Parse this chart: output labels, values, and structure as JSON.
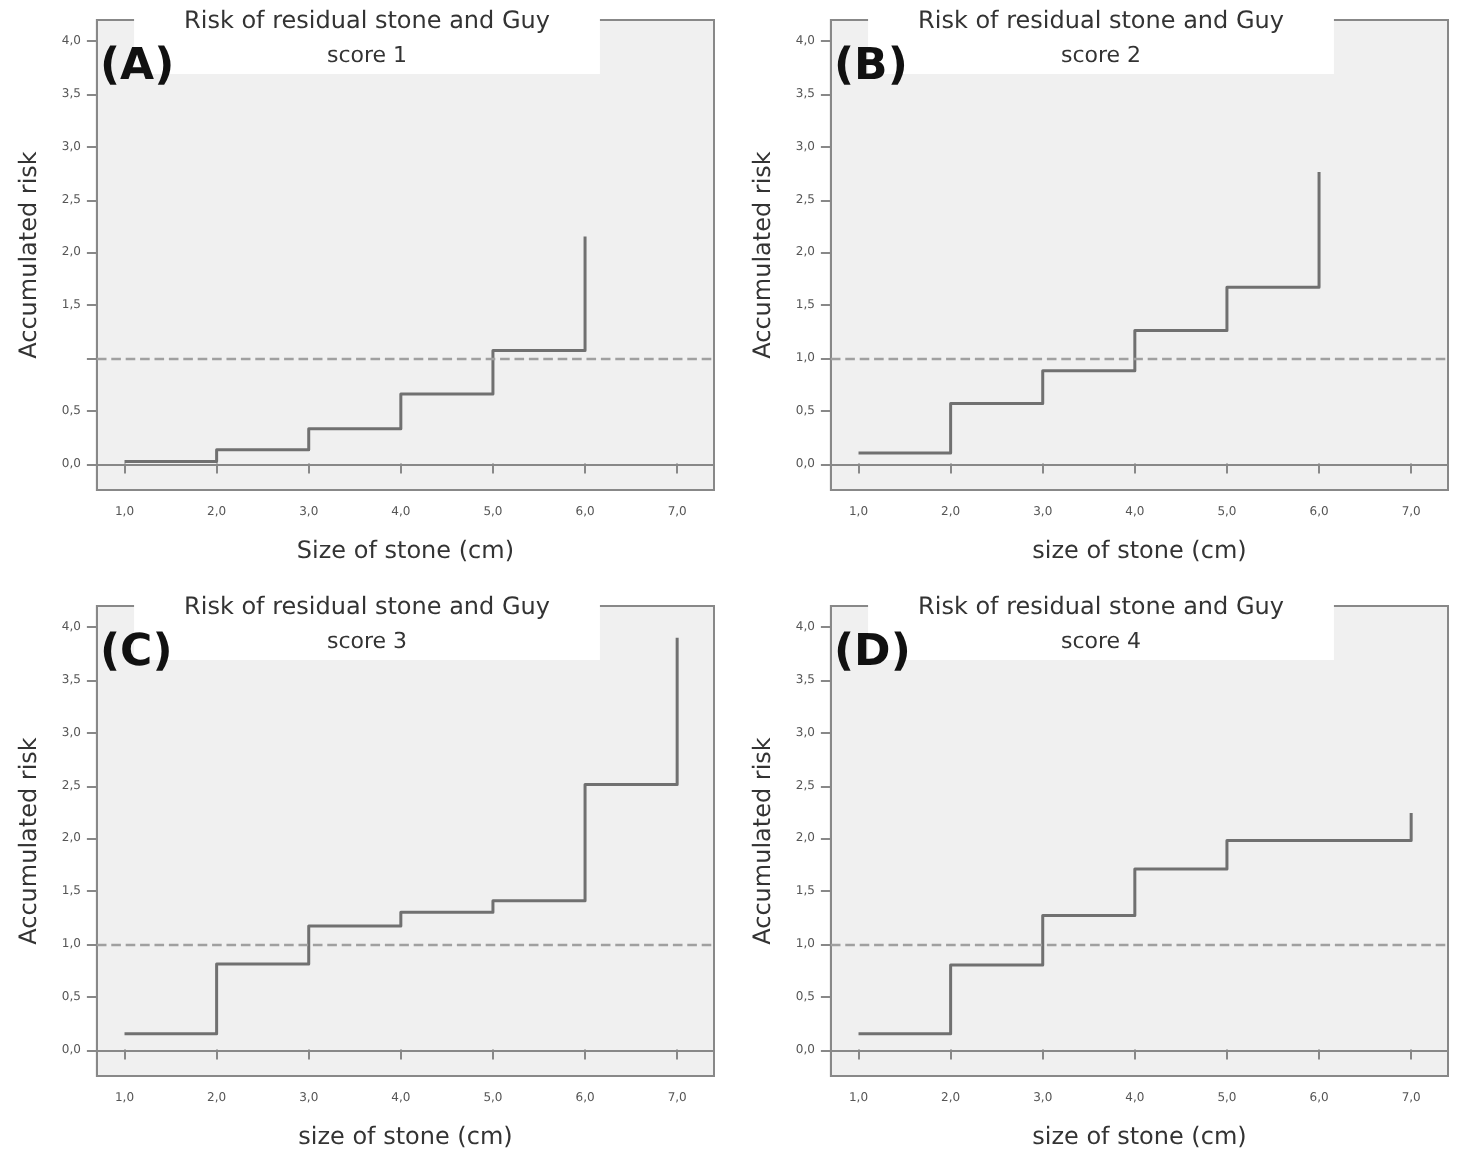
{
  "chart_data": [
    {
      "type": "step",
      "title": "Risk of residual stone and Guy",
      "subtitle": "score 1",
      "xlabel": "Size of stone (cm)",
      "ylabel": "Accumulated risk",
      "annotations": [
        "(A)"
      ],
      "marker": "none",
      "grid": false,
      "series": [
        {
          "color": "#707070",
          "x": [
            1,
            2,
            3,
            4,
            5,
            6
          ],
          "values": [
            0.02,
            0.13,
            0.33,
            0.66,
            1.07,
            2.15
          ]
        }
      ],
      "ref_lines": [
        {
          "axis": "y",
          "value": 1,
          "color": "#a0a0a0",
          "line_style": "dashed"
        }
      ],
      "xlim": [
        0.7,
        7.4
      ],
      "xticks": [
        {
          "value": 1,
          "label": "1,0"
        },
        {
          "value": 2,
          "label": "2,0"
        },
        {
          "value": 3,
          "label": "3,0"
        },
        {
          "value": 4,
          "label": "4,0"
        },
        {
          "value": 5,
          "label": "5,0"
        },
        {
          "value": 6,
          "label": "6,0"
        },
        {
          "value": 7,
          "label": "7,0"
        }
      ],
      "ylim": [
        -0.25,
        4.2
      ],
      "yticks": [
        {
          "value": 0,
          "label": "0,0"
        },
        {
          "value": 0.5,
          "label": "0,5"
        },
        {
          "value": 1,
          "label": null
        },
        {
          "value": 1.5,
          "label": "1,5"
        },
        {
          "value": 2,
          "label": "2,0"
        },
        {
          "value": 2.5,
          "label": "2,5"
        },
        {
          "value": 3,
          "label": "3,0"
        },
        {
          "value": 3.5,
          "label": "3,5"
        },
        {
          "value": 4,
          "label": "4,0"
        }
      ]
    },
    {
      "type": "step",
      "title": "Risk of residual stone and Guy",
      "subtitle": "score 2",
      "xlabel": "size of stone (cm)",
      "ylabel": "Accumulated risk",
      "annotations": [
        "(B)"
      ],
      "marker": "none",
      "grid": false,
      "series": [
        {
          "color": "#707070",
          "x": [
            1,
            2,
            3,
            4,
            5,
            6
          ],
          "values": [
            0.1,
            0.57,
            0.88,
            1.26,
            1.67,
            2.76
          ]
        }
      ],
      "ref_lines": [
        {
          "axis": "y",
          "value": 1,
          "color": "#a0a0a0",
          "line_style": "dashed"
        }
      ],
      "xlim": [
        0.7,
        7.4
      ],
      "xticks": [
        {
          "value": 1,
          "label": "1,0"
        },
        {
          "value": 2,
          "label": "2,0"
        },
        {
          "value": 3,
          "label": "3,0"
        },
        {
          "value": 4,
          "label": "4,0"
        },
        {
          "value": 5,
          "label": "5,0"
        },
        {
          "value": 6,
          "label": "6,0"
        },
        {
          "value": 7,
          "label": "7,0"
        }
      ],
      "ylim": [
        -0.25,
        4.2
      ],
      "yticks": [
        {
          "value": 0,
          "label": "0,0"
        },
        {
          "value": 0.5,
          "label": "0,5"
        },
        {
          "value": 1,
          "label": "1,0"
        },
        {
          "value": 1.5,
          "label": "1,5"
        },
        {
          "value": 2,
          "label": "2,0"
        },
        {
          "value": 2.5,
          "label": "2,5"
        },
        {
          "value": 3,
          "label": "3,0"
        },
        {
          "value": 3.5,
          "label": "3,5"
        },
        {
          "value": 4,
          "label": "4,0"
        }
      ]
    },
    {
      "type": "step",
      "title": "Risk of residual stone and Guy",
      "subtitle": "score 3",
      "xlabel": "size of stone (cm)",
      "ylabel": "Accumulated risk",
      "annotations": [
        "(C)"
      ],
      "marker": "none",
      "grid": false,
      "series": [
        {
          "color": "#707070",
          "x": [
            1,
            2,
            3,
            4,
            5,
            6,
            7
          ],
          "values": [
            0.15,
            0.81,
            1.17,
            1.3,
            1.41,
            2.51,
            3.9
          ]
        }
      ],
      "ref_lines": [
        {
          "axis": "y",
          "value": 1,
          "color": "#a0a0a0",
          "line_style": "dashed"
        }
      ],
      "xlim": [
        0.7,
        7.4
      ],
      "xticks": [
        {
          "value": 1,
          "label": "1,0"
        },
        {
          "value": 2,
          "label": "2,0"
        },
        {
          "value": 3,
          "label": "3,0"
        },
        {
          "value": 4,
          "label": "4,0"
        },
        {
          "value": 5,
          "label": "5,0"
        },
        {
          "value": 6,
          "label": "6,0"
        },
        {
          "value": 7,
          "label": "7,0"
        }
      ],
      "ylim": [
        -0.25,
        4.2
      ],
      "yticks": [
        {
          "value": 0,
          "label": "0,0"
        },
        {
          "value": 0.5,
          "label": "0,5"
        },
        {
          "value": 1,
          "label": "1,0"
        },
        {
          "value": 1.5,
          "label": "1,5"
        },
        {
          "value": 2,
          "label": "2,0"
        },
        {
          "value": 2.5,
          "label": "2,5"
        },
        {
          "value": 3,
          "label": "3,0"
        },
        {
          "value": 3.5,
          "label": "3,5"
        },
        {
          "value": 4,
          "label": "4,0"
        }
      ]
    },
    {
      "type": "step",
      "title": "Risk of residual stone and Guy",
      "subtitle": "score 4",
      "xlabel": "size of stone (cm)",
      "ylabel": "Accumulated risk",
      "annotations": [
        "(D)"
      ],
      "marker": "none",
      "grid": false,
      "series": [
        {
          "color": "#707070",
          "x": [
            1,
            2,
            3,
            4,
            5,
            7
          ],
          "values": [
            0.15,
            0.8,
            1.27,
            1.71,
            1.98,
            2.24
          ]
        }
      ],
      "ref_lines": [
        {
          "axis": "y",
          "value": 1,
          "color": "#a0a0a0",
          "line_style": "dashed"
        }
      ],
      "xlim": [
        0.7,
        7.4
      ],
      "xticks": [
        {
          "value": 1,
          "label": "1,0"
        },
        {
          "value": 2,
          "label": "2,0"
        },
        {
          "value": 3,
          "label": "3,0"
        },
        {
          "value": 4,
          "label": "4,0"
        },
        {
          "value": 5,
          "label": "5,0"
        },
        {
          "value": 6,
          "label": "6,0"
        },
        {
          "value": 7,
          "label": "7,0"
        }
      ],
      "ylim": [
        -0.25,
        4.2
      ],
      "yticks": [
        {
          "value": 0,
          "label": "0,0"
        },
        {
          "value": 0.5,
          "label": "0,5"
        },
        {
          "value": 1,
          "label": "1,0"
        },
        {
          "value": 1.5,
          "label": "1,5"
        },
        {
          "value": 2,
          "label": "2,0"
        },
        {
          "value": 2.5,
          "label": "2,5"
        },
        {
          "value": 3,
          "label": "3,0"
        },
        {
          "value": 3.5,
          "label": "3,5"
        },
        {
          "value": 4,
          "label": "4,0"
        }
      ]
    }
  ]
}
